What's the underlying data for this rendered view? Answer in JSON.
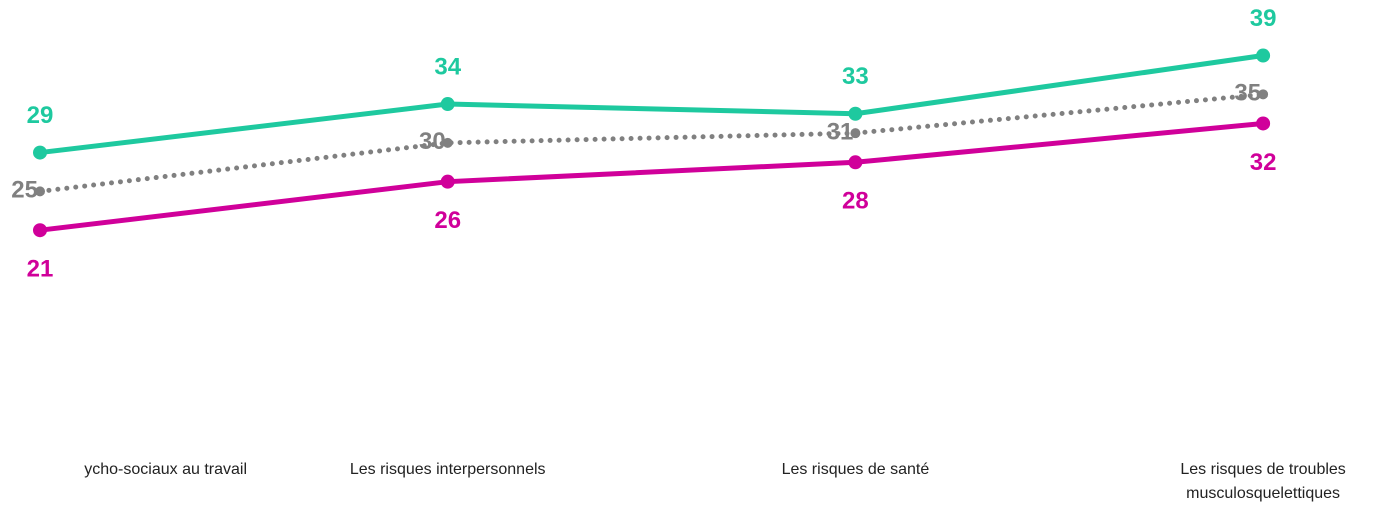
{
  "chart_data": {
    "type": "line",
    "categories": [
      [
        "ycho-sociaux au travail"
      ],
      [
        "Les risques interpersonnels"
      ],
      [
        "Les risques de santé"
      ],
      [
        "Les risques de troubles",
        "musculosquelettiques"
      ]
    ],
    "series": [
      {
        "color": "#1ec99f",
        "style": "solid",
        "label_position": "above",
        "values": [
          29,
          34,
          33,
          39
        ]
      },
      {
        "color": "#808080",
        "style": "dotted",
        "label_position": "left",
        "values": [
          25,
          30,
          31,
          35
        ]
      },
      {
        "color": "#d0009a",
        "style": "solid",
        "label_position": "below",
        "values": [
          21,
          26,
          28,
          32
        ]
      }
    ],
    "ylim": [
      0,
      44
    ]
  }
}
